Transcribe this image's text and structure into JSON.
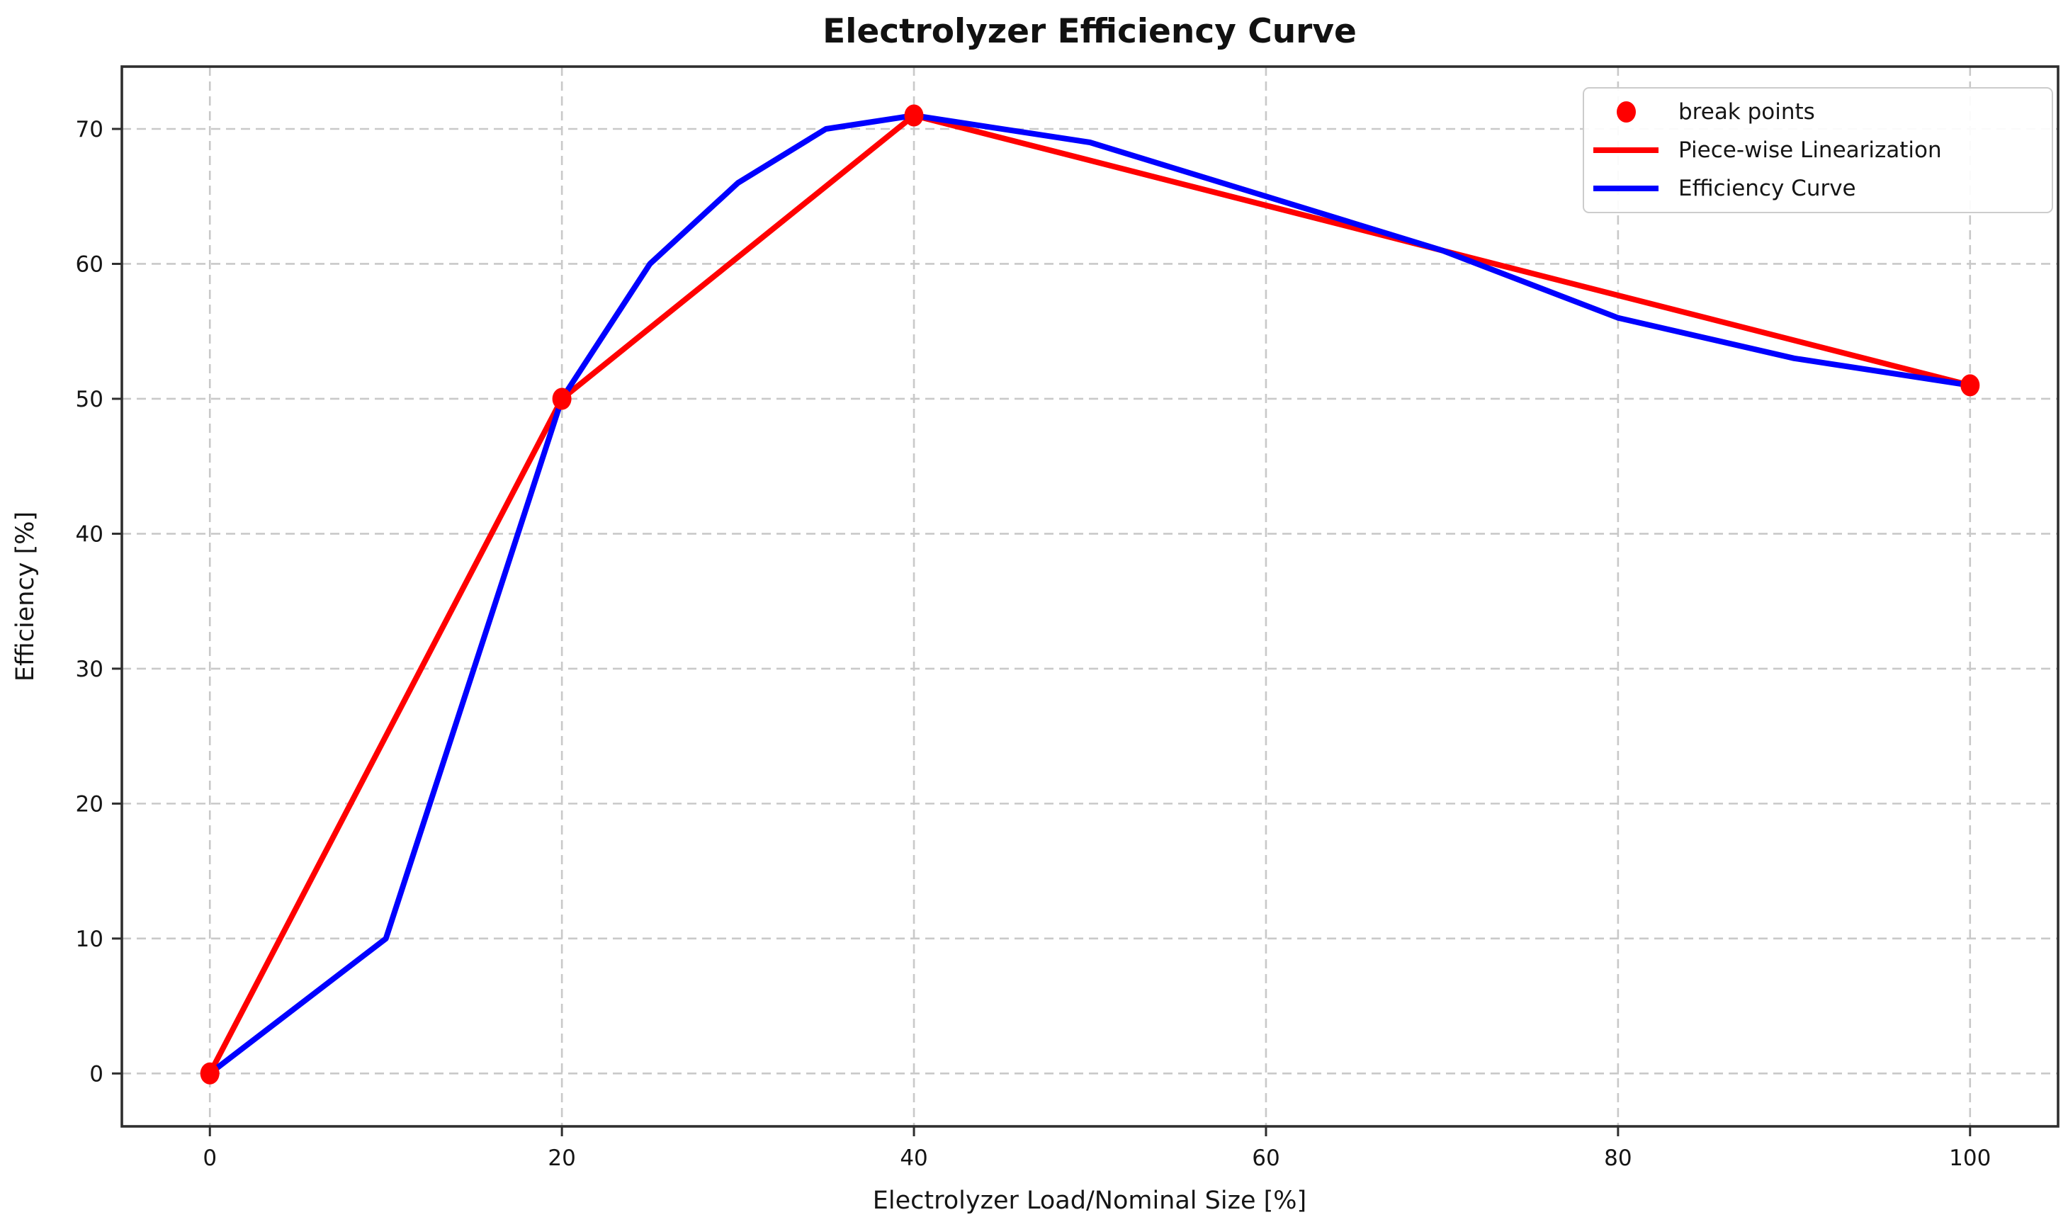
{
  "chart_data": {
    "type": "line",
    "title": "Electrolyzer Efficiency Curve",
    "xlabel": "Electrolyzer Load/Nominal Size [%]",
    "ylabel": "Efficiency [%]",
    "xlim": [
      -5,
      105
    ],
    "ylim": [
      -3.92,
      74.62
    ],
    "xticks": [
      0,
      20,
      40,
      60,
      80,
      100
    ],
    "yticks": [
      0,
      10,
      20,
      30,
      40,
      50,
      60,
      70
    ],
    "grid": true,
    "grid_style": "dashed",
    "legend_position": "upper right",
    "series": [
      {
        "name": "break points",
        "type": "scatter",
        "color": "#ff0000",
        "x": [
          0,
          20,
          40,
          100
        ],
        "y": [
          0,
          50,
          71,
          51
        ]
      },
      {
        "name": "Piece-wise Linearization",
        "type": "line",
        "color": "#ff0000",
        "x": [
          0,
          20,
          40,
          100
        ],
        "y": [
          0,
          50,
          71,
          51
        ]
      },
      {
        "name": "Efficiency Curve",
        "type": "line",
        "color": "#0000ff",
        "x": [
          0,
          10,
          20,
          25,
          30,
          35,
          40,
          50,
          60,
          70,
          80,
          90,
          100
        ],
        "y": [
          0,
          10,
          50,
          60,
          66,
          70,
          71,
          69,
          65,
          61,
          56,
          53,
          51
        ]
      }
    ],
    "colors": {
      "red_series": "#ff0000",
      "blue_series": "#0000ff",
      "grid": "#c9c9c9",
      "spine": "#2e2e2e",
      "text": "#151515",
      "background": "#ffffff"
    }
  }
}
